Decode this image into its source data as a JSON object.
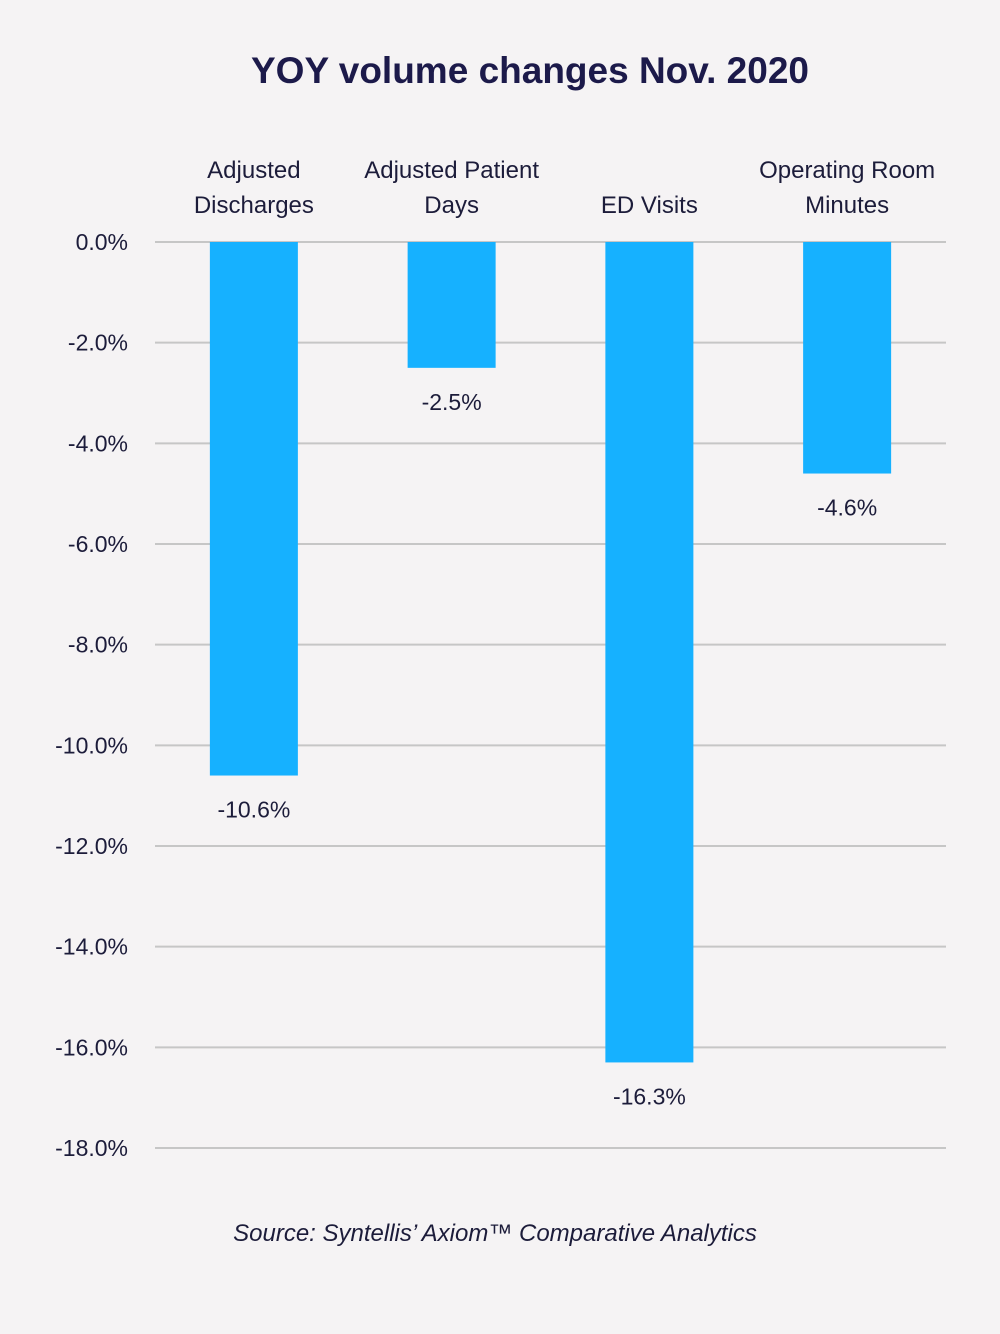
{
  "chart_data": {
    "type": "bar",
    "title": "YOY volume changes Nov. 2020",
    "categories": [
      [
        "Adjusted",
        "Discharges"
      ],
      [
        "Adjusted Patient",
        "Days"
      ],
      [
        "",
        "ED Visits"
      ],
      [
        "Operating Room",
        "Minutes"
      ]
    ],
    "values": [
      -10.6,
      -2.5,
      -16.3,
      -4.6
    ],
    "data_labels": [
      "-10.6%",
      "-2.5%",
      "-16.3%",
      "-4.6%"
    ],
    "ylim": [
      -18,
      0
    ],
    "yticks": [
      "0.0%",
      "-2.0%",
      "-4.0%",
      "-6.0%",
      "-8.0%",
      "-10.0%",
      "-12.0%",
      "-14.0%",
      "-16.0%",
      "-18.0%"
    ],
    "xlabel": "",
    "ylabel": "",
    "grid": true,
    "legend": "none",
    "bar_color": "#16b1ff",
    "grid_color": "#c6c6c6"
  },
  "source": "Source: Syntellis’ Axiom™ Comparative Analytics"
}
